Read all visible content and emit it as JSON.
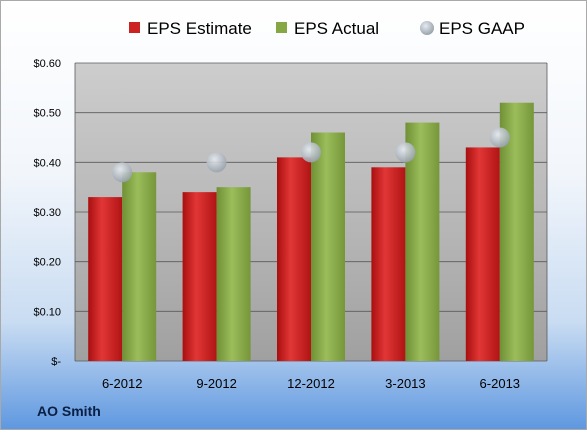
{
  "company": "AO Smith",
  "chart_data": {
    "type": "bar",
    "categories": [
      "6-2012",
      "9-2012",
      "12-2012",
      "3-2013",
      "6-2013"
    ],
    "series": [
      {
        "name": "EPS Estimate",
        "kind": "bar",
        "color": "#cc2222",
        "values": [
          0.33,
          0.34,
          0.41,
          0.39,
          0.43
        ]
      },
      {
        "name": "EPS Actual",
        "kind": "bar",
        "color": "#86a844",
        "values": [
          0.38,
          0.35,
          0.46,
          0.48,
          0.52
        ]
      },
      {
        "name": "EPS GAAP",
        "kind": "marker",
        "color": "#a8b0ba",
        "values": [
          0.38,
          0.4,
          0.42,
          0.42,
          0.45
        ]
      }
    ],
    "yticks": [
      "$-",
      "$0.10",
      "$0.20",
      "$0.30",
      "$0.40",
      "$0.50",
      "$0.60"
    ],
    "ylim": [
      0,
      0.6
    ],
    "grid": true,
    "legend_position": "top"
  }
}
